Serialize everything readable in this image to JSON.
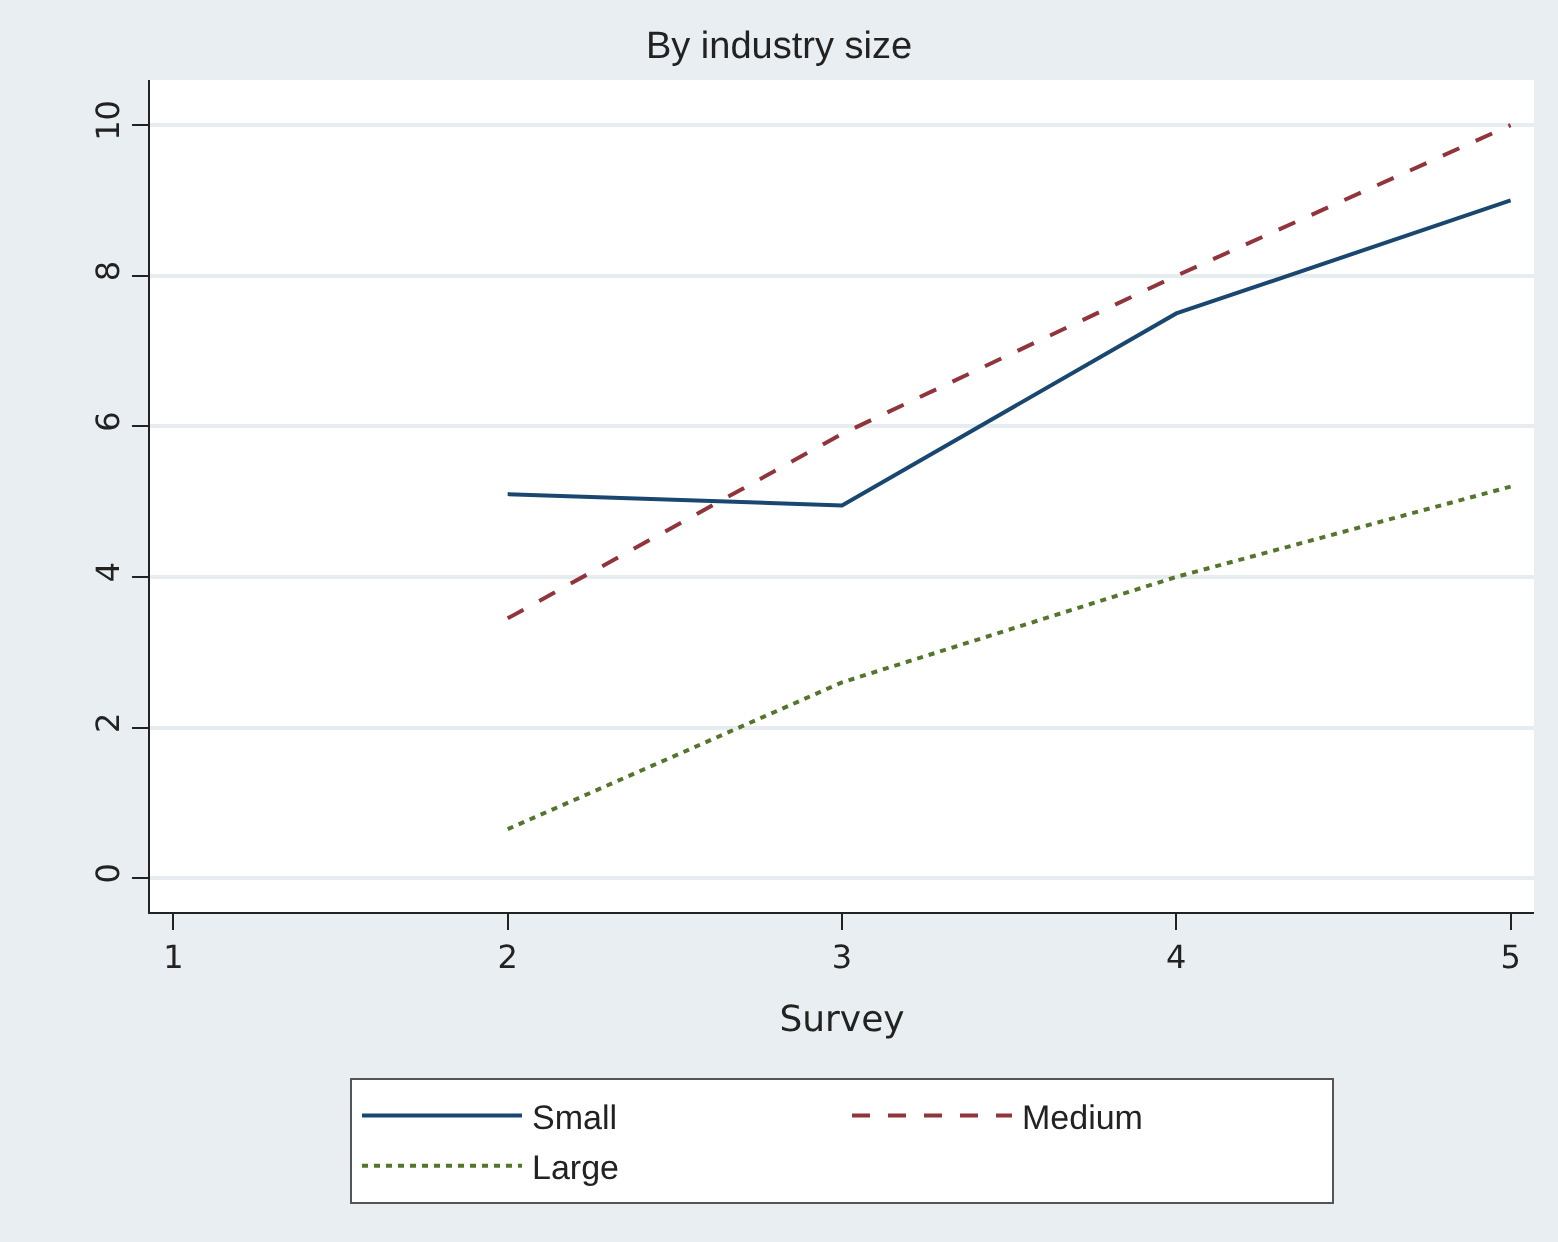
{
  "chart_data": {
    "type": "line",
    "title": "By industry size",
    "xlabel": "Survey",
    "x": [
      2,
      3,
      4,
      5
    ],
    "series": [
      {
        "name": "Small",
        "color": "#1a476f",
        "line_style": "solid",
        "values": [
          5.1,
          4.95,
          7.5,
          9.0
        ]
      },
      {
        "name": "Medium",
        "color": "#90353b",
        "line_style": "dashed",
        "values": [
          3.45,
          5.9,
          8.0,
          10.0
        ]
      },
      {
        "name": "Large",
        "color": "#55752f",
        "line_style": "dotted",
        "values": [
          0.65,
          2.6,
          4.0,
          5.2
        ]
      }
    ],
    "xlim": [
      0.93,
      5.07
    ],
    "xticks": [
      1,
      2,
      3,
      4,
      5
    ],
    "ylim": [
      -0.45,
      10.6
    ],
    "yticks": [
      0,
      2,
      4,
      6,
      8,
      10
    ],
    "grid": "y",
    "legend": "bottom",
    "marker": "none"
  }
}
